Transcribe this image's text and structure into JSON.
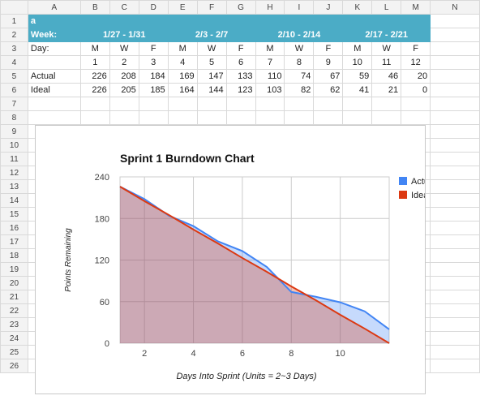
{
  "columns": [
    "",
    "A",
    "B",
    "C",
    "D",
    "E",
    "F",
    "G",
    "H",
    "I",
    "J",
    "K",
    "L",
    "M",
    "N"
  ],
  "rows": {
    "r1": {
      "num": "1",
      "a": "a"
    },
    "r2": {
      "num": "2",
      "label": "Week:",
      "weeks": [
        "1/27 - 1/31",
        "2/3 - 2/7",
        "2/10 - 2/14",
        "2/17 - 2/21"
      ]
    },
    "r3": {
      "num": "3",
      "label": "Day:",
      "cells": [
        "M",
        "W",
        "F",
        "M",
        "W",
        "F",
        "M",
        "W",
        "F",
        "M",
        "W",
        "F"
      ]
    },
    "r4": {
      "num": "4",
      "label": "",
      "cells": [
        "1",
        "2",
        "3",
        "4",
        "5",
        "6",
        "7",
        "8",
        "9",
        "10",
        "11",
        "12"
      ]
    },
    "r5": {
      "num": "5",
      "label": "Actual",
      "cells": [
        "226",
        "208",
        "184",
        "169",
        "147",
        "133",
        "110",
        "74",
        "67",
        "59",
        "46",
        "20"
      ]
    },
    "r6": {
      "num": "6",
      "label": "Ideal",
      "cells": [
        "226",
        "205",
        "185",
        "164",
        "144",
        "123",
        "103",
        "82",
        "62",
        "41",
        "21",
        "0"
      ]
    },
    "empty_rows": [
      "7",
      "8",
      "9",
      "10",
      "11",
      "12",
      "13",
      "14",
      "15",
      "16",
      "17",
      "18",
      "19",
      "20",
      "21",
      "22",
      "23",
      "24",
      "25",
      "26"
    ]
  },
  "chart_data": {
    "type": "area",
    "title": "Sprint 1 Burndown Chart",
    "xlabel": "Days Into Sprint (Units = 2~3 Days)",
    "ylabel": "Points Remaining",
    "x": [
      1,
      2,
      3,
      4,
      5,
      6,
      7,
      8,
      9,
      10,
      11,
      12
    ],
    "xticks": [
      2,
      4,
      6,
      8,
      10
    ],
    "yticks": [
      0,
      60,
      120,
      180,
      240
    ],
    "ylim": [
      0,
      240
    ],
    "xlim": [
      1,
      12
    ],
    "grid": true,
    "legend_position": "right",
    "series": [
      {
        "name": "Actual",
        "color": "#4285f4",
        "values": [
          226,
          208,
          184,
          169,
          147,
          133,
          110,
          74,
          67,
          59,
          46,
          20
        ]
      },
      {
        "name": "Ideal",
        "color": "#dc3912",
        "values": [
          226,
          205,
          185,
          164,
          144,
          123,
          103,
          82,
          62,
          41,
          21,
          0
        ]
      }
    ]
  }
}
